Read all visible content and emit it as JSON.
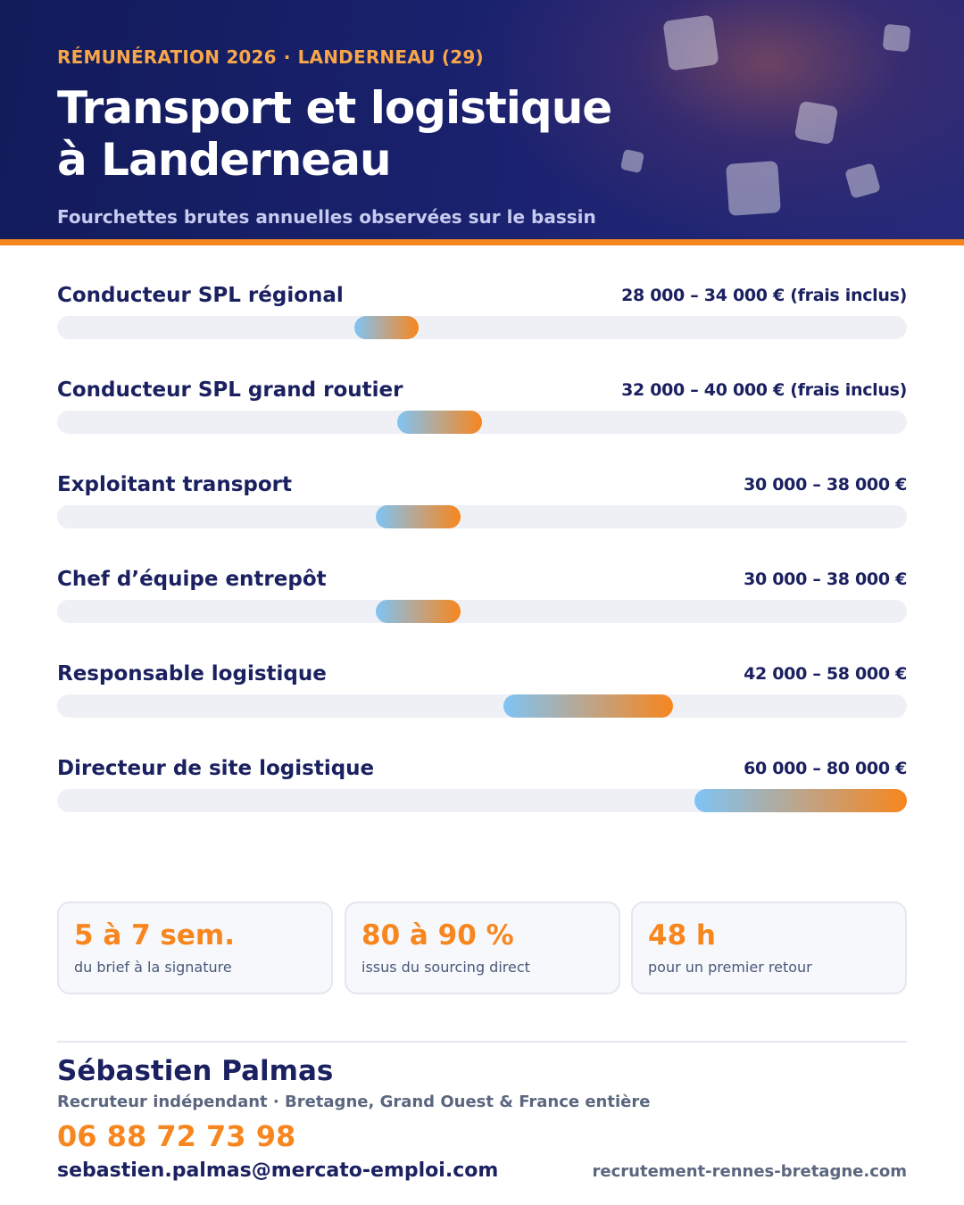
{
  "header": {
    "eyebrow_left": "RÉMUNÉRATION 2026",
    "eyebrow_sep": "·",
    "eyebrow_right": "LANDERNEAU (29)",
    "title_line1": "Transport et logistique",
    "title_line2": "à Landerneau",
    "subtitle": "Fourchettes brutes annuelles observées sur le bassin"
  },
  "colors": {
    "accent": "#f7861e",
    "navy": "#1b2160",
    "bar_start": "#7ec4f4",
    "bar_end": "#f7861e"
  },
  "salary_ranges": [
    {
      "role": "Conducteur SPL régional",
      "label": "28 000 – 34 000 € (frais inclus)",
      "min": 28000,
      "max": 34000
    },
    {
      "role": "Conducteur SPL grand routier",
      "label": "32 000 – 40 000 € (frais inclus)",
      "min": 32000,
      "max": 40000
    },
    {
      "role": "Exploitant transport",
      "label": "30 000 – 38 000 €",
      "min": 30000,
      "max": 38000
    },
    {
      "role": "Chef d’équipe entrepôt",
      "label": "30 000 – 38 000 €",
      "min": 30000,
      "max": 38000
    },
    {
      "role": "Responsable logistique",
      "label": "42 000 – 58 000 €",
      "min": 42000,
      "max": 58000
    },
    {
      "role": "Directeur de site logistique",
      "label": "60 000 – 80 000 €",
      "min": 60000,
      "max": 80000
    }
  ],
  "scale": {
    "min": 0,
    "max": 80000
  },
  "stats": [
    {
      "value": "5 à 7 sem.",
      "label": "du brief à la signature"
    },
    {
      "value": "80 à 90 %",
      "label": "issus du sourcing direct"
    },
    {
      "value": "48 h",
      "label": "pour un premier retour"
    }
  ],
  "contact": {
    "name": "Sébastien Palmas",
    "role": "Recruteur indépendant · Bretagne, Grand Ouest & France entière",
    "phone": "06 88 72 73 98",
    "email": "sebastien.palmas@mercato-emploi.com",
    "website": "recrutement-rennes-bretagne.com"
  }
}
